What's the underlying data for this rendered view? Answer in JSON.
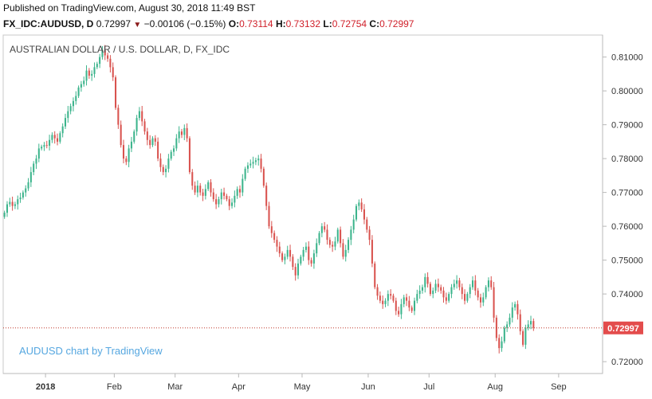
{
  "header": {
    "published": "Published on TradingView.com, August 30, 2018 11:49 BST",
    "symbol": "FX_IDC:AUDUSD, D",
    "last": "0.72997",
    "change": "−0.00106 (−0.15%)",
    "o_label": "O:",
    "o_value": "0.73114",
    "h_label": "H:",
    "h_value": "0.73132",
    "l_label": "L:",
    "l_value": "0.72754",
    "c_label": "C:",
    "c_value": "0.72997"
  },
  "colors": {
    "up": "#3cb48c",
    "down": "#d9534f",
    "price_line": "#c0392b",
    "price_tag": "#e34c4c",
    "watermark": "#56a7e0",
    "axis_border": "#b8b8b8"
  },
  "chart_data": {
    "type": "candlestick",
    "title": "AUSTRALIAN DOLLAR / U.S. DOLLAR, D, FX_IDC",
    "watermark": "AUDUSD chart by TradingView",
    "last_price_label": "0.72997",
    "last_price": 0.72997,
    "ylim": [
      0.7165,
      0.8165
    ],
    "xlim": [
      0,
      223
    ],
    "y_ticks": [
      "0.81000",
      "0.80000",
      "0.79000",
      "0.78000",
      "0.77000",
      "0.76000",
      "0.75000",
      "0.74000",
      "0.72000"
    ],
    "x_ticks": [
      {
        "label": "2018",
        "x": 16,
        "bold": true
      },
      {
        "label": "Feb",
        "x": 42,
        "bold": false
      },
      {
        "label": "Mar",
        "x": 65,
        "bold": false
      },
      {
        "label": "Apr",
        "x": 89,
        "bold": false
      },
      {
        "label": "May",
        "x": 113,
        "bold": false
      },
      {
        "label": "Jun",
        "x": 138,
        "bold": false
      },
      {
        "label": "Jul",
        "x": 161,
        "bold": false
      },
      {
        "label": "Aug",
        "x": 186,
        "bold": false
      },
      {
        "label": "Sep",
        "x": 210,
        "bold": false
      }
    ],
    "closes": [
      0.764,
      0.7665,
      0.7672,
      0.766,
      0.7665,
      0.768,
      0.7685,
      0.77,
      0.7712,
      0.773,
      0.776,
      0.7785,
      0.78,
      0.783,
      0.7835,
      0.784,
      0.7838,
      0.7855,
      0.787,
      0.786,
      0.785,
      0.7875,
      0.7895,
      0.792,
      0.794,
      0.7955,
      0.797,
      0.7985,
      0.801,
      0.802,
      0.803,
      0.806,
      0.8045,
      0.805,
      0.807,
      0.808,
      0.81,
      0.812,
      0.8105,
      0.8095,
      0.807,
      0.804,
      0.795,
      0.79,
      0.784,
      0.78,
      0.779,
      0.783,
      0.785,
      0.788,
      0.792,
      0.794,
      0.791,
      0.788,
      0.7855,
      0.784,
      0.786,
      0.785,
      0.78,
      0.7775,
      0.776,
      0.777,
      0.78,
      0.782,
      0.783,
      0.786,
      0.788,
      0.787,
      0.789,
      0.786,
      0.776,
      0.772,
      0.77,
      0.772,
      0.77,
      0.769,
      0.771,
      0.773,
      0.77,
      0.768,
      0.7665,
      0.768,
      0.77,
      0.769,
      0.768,
      0.766,
      0.767,
      0.769,
      0.771,
      0.77,
      0.774,
      0.777,
      0.778,
      0.7785,
      0.779,
      0.7795,
      0.78,
      0.777,
      0.772,
      0.766,
      0.76,
      0.758,
      0.756,
      0.754,
      0.752,
      0.75,
      0.751,
      0.753,
      0.751,
      0.748,
      0.7455,
      0.749,
      0.751,
      0.753,
      0.754,
      0.75,
      0.749,
      0.752,
      0.755,
      0.758,
      0.76,
      0.759,
      0.756,
      0.7545,
      0.754,
      0.7555,
      0.759,
      0.755,
      0.751,
      0.753,
      0.756,
      0.759,
      0.762,
      0.766,
      0.767,
      0.765,
      0.762,
      0.759,
      0.756,
      0.749,
      0.742,
      0.7395,
      0.738,
      0.737,
      0.738,
      0.74,
      0.7395,
      0.738,
      0.735,
      0.734,
      0.737,
      0.739,
      0.738,
      0.736,
      0.735,
      0.738,
      0.74,
      0.741,
      0.742,
      0.745,
      0.743,
      0.74,
      0.741,
      0.743,
      0.742,
      0.741,
      0.739,
      0.738,
      0.74,
      0.742,
      0.743,
      0.744,
      0.742,
      0.74,
      0.738,
      0.74,
      0.742,
      0.744,
      0.741,
      0.739,
      0.7375,
      0.739,
      0.742,
      0.744,
      0.742,
      0.733,
      0.727,
      0.724,
      0.726,
      0.73,
      0.731,
      0.733,
      0.736,
      0.737,
      0.734,
      0.729,
      0.725,
      0.73,
      0.731,
      0.732,
      0.73
    ]
  }
}
